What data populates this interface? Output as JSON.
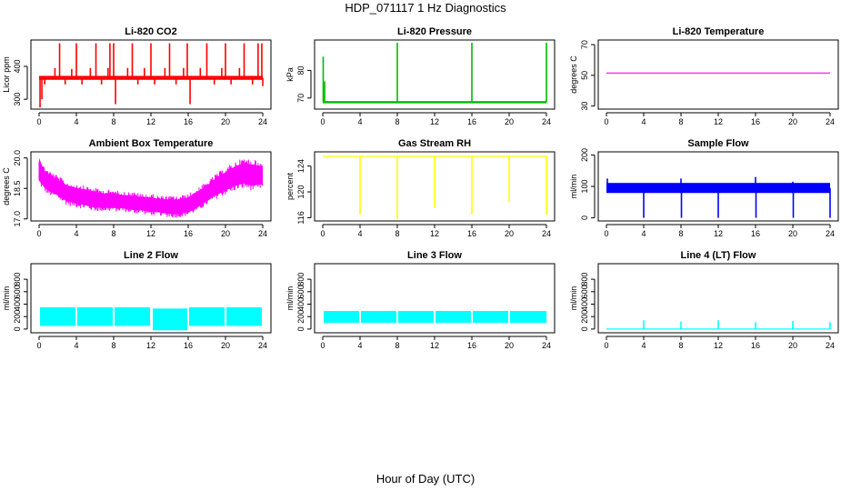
{
  "figure": {
    "title": "HDP_071117  1 Hz Diagnostics",
    "xlabel": "Hour of Day (UTC)"
  },
  "chart_data": [
    {
      "id": "co2",
      "type": "line",
      "title": "Li-820 CO2",
      "ylabel": "Licor ppm",
      "color": "#ff0000",
      "xlim": [
        0,
        24
      ],
      "ylim": [
        270,
        480
      ],
      "xticks": [
        "0",
        "4",
        "8",
        "12",
        "16",
        "20",
        "24"
      ],
      "yticks": [
        300,
        400
      ],
      "baseline": 365,
      "band": 6,
      "spikes": [
        {
          "x": 0.1,
          "y": 275
        },
        {
          "x": 0.3,
          "y": 300
        },
        {
          "x": 0.6,
          "y": 345
        },
        {
          "x": 1.7,
          "y": 395
        },
        {
          "x": 2.2,
          "y": 470
        },
        {
          "x": 2.8,
          "y": 345
        },
        {
          "x": 3.5,
          "y": 392
        },
        {
          "x": 4.0,
          "y": 470
        },
        {
          "x": 4.6,
          "y": 345
        },
        {
          "x": 5.5,
          "y": 395
        },
        {
          "x": 6.1,
          "y": 470
        },
        {
          "x": 6.7,
          "y": 345
        },
        {
          "x": 7.4,
          "y": 395
        },
        {
          "x": 7.6,
          "y": 470
        },
        {
          "x": 8.0,
          "y": 470
        },
        {
          "x": 8.2,
          "y": 285
        },
        {
          "x": 9.5,
          "y": 395
        },
        {
          "x": 10.0,
          "y": 470
        },
        {
          "x": 10.6,
          "y": 345
        },
        {
          "x": 11.3,
          "y": 395
        },
        {
          "x": 12.0,
          "y": 470
        },
        {
          "x": 12.4,
          "y": 345
        },
        {
          "x": 13.5,
          "y": 395
        },
        {
          "x": 14.0,
          "y": 470
        },
        {
          "x": 14.7,
          "y": 345
        },
        {
          "x": 15.5,
          "y": 395
        },
        {
          "x": 15.9,
          "y": 470
        },
        {
          "x": 16.2,
          "y": 285
        },
        {
          "x": 17.3,
          "y": 395
        },
        {
          "x": 18.0,
          "y": 470
        },
        {
          "x": 18.8,
          "y": 345
        },
        {
          "x": 19.6,
          "y": 395
        },
        {
          "x": 20.0,
          "y": 470
        },
        {
          "x": 20.6,
          "y": 345
        },
        {
          "x": 21.5,
          "y": 395
        },
        {
          "x": 22.0,
          "y": 470
        },
        {
          "x": 22.9,
          "y": 345
        },
        {
          "x": 23.5,
          "y": 470
        },
        {
          "x": 23.9,
          "y": 470
        },
        {
          "x": 24.0,
          "y": 340
        }
      ]
    },
    {
      "id": "pressure",
      "type": "line",
      "title": "Li-820 Pressure",
      "ylabel": "kPa",
      "color": "#00bb00",
      "xlim": [
        0,
        24
      ],
      "ylim": [
        66,
        91
      ],
      "xticks": [
        "0",
        "4",
        "8",
        "12",
        "16",
        "20",
        "24"
      ],
      "yticks": [
        70,
        80
      ],
      "baseline": 68.5,
      "band": 0.4,
      "spikes": [
        {
          "x": 0.05,
          "y": 85
        },
        {
          "x": 0.2,
          "y": 76
        },
        {
          "x": 8.0,
          "y": 90
        },
        {
          "x": 16.0,
          "y": 90
        },
        {
          "x": 24.0,
          "y": 90
        }
      ]
    },
    {
      "id": "temperature",
      "type": "line",
      "title": "Li-820 Temperature",
      "ylabel": "degrees C",
      "color": "#ff00ff",
      "xlim": [
        0,
        24
      ],
      "ylim": [
        28,
        73
      ],
      "xticks": [
        "0",
        "4",
        "8",
        "12",
        "16",
        "20",
        "24"
      ],
      "yticks": [
        30,
        50,
        70
      ],
      "baseline": 51.5,
      "band": 0,
      "spikes": []
    },
    {
      "id": "ambient",
      "type": "band",
      "title": "Ambient Box Temperature",
      "ylabel": "degrees C",
      "color": "#ff00ff",
      "xlim": [
        0,
        24
      ],
      "ylim": [
        16.9,
        20.3
      ],
      "xticks": [
        "0",
        "4",
        "8",
        "12",
        "16",
        "20",
        "24"
      ],
      "yticks": [
        17.0,
        18.5,
        20.0
      ],
      "profile": {
        "x": [
          0,
          0.5,
          1,
          2,
          3,
          4,
          5,
          6,
          7,
          8,
          9,
          10,
          11,
          12,
          13,
          14,
          15,
          16,
          17,
          18,
          19,
          20,
          21,
          22,
          23,
          24
        ],
        "low": [
          18.6,
          18.3,
          18.1,
          17.9,
          17.6,
          17.5,
          17.4,
          17.3,
          17.3,
          17.3,
          17.3,
          17.2,
          17.2,
          17.1,
          17.1,
          17.0,
          17.0,
          17.1,
          17.3,
          17.6,
          17.9,
          18.1,
          18.3,
          18.4,
          18.3,
          18.4
        ],
        "high": [
          20.0,
          19.7,
          19.5,
          19.2,
          18.9,
          18.8,
          18.7,
          18.6,
          18.5,
          18.5,
          18.4,
          18.4,
          18.3,
          18.3,
          18.2,
          18.2,
          18.2,
          18.3,
          18.6,
          18.9,
          19.3,
          19.6,
          19.9,
          20.1,
          20.0,
          19.9
        ]
      }
    },
    {
      "id": "rh",
      "type": "line",
      "title": "Gas Stream RH",
      "ylabel": "percent",
      "color": "#ffff00",
      "xlim": [
        0,
        24
      ],
      "ylim": [
        115.5,
        126.2
      ],
      "xticks": [
        "0",
        "4",
        "8",
        "12",
        "16",
        "20",
        "24"
      ],
      "yticks": [
        116,
        120,
        124
      ],
      "baseline": 125.5,
      "band": 0,
      "spikes": [
        {
          "x": 4.0,
          "y": 116.5
        },
        {
          "x": 8.0,
          "y": 115.8
        },
        {
          "x": 12.0,
          "y": 117.5
        },
        {
          "x": 16.0,
          "y": 116.5
        },
        {
          "x": 20.0,
          "y": 118.5
        },
        {
          "x": 24.0,
          "y": 116.5
        }
      ]
    },
    {
      "id": "sample",
      "type": "line",
      "title": "Sample Flow",
      "ylabel": "ml/min",
      "color": "#0000ff",
      "xlim": [
        0,
        24
      ],
      "ylim": [
        -10,
        210
      ],
      "xticks": [
        "0",
        "4",
        "8",
        "12",
        "16",
        "20",
        "24"
      ],
      "yticks": [
        0,
        100,
        200
      ],
      "baseline": 95,
      "band": 16,
      "spikes": [
        {
          "x": 0.1,
          "y": 125
        },
        {
          "x": 4.0,
          "y": 0
        },
        {
          "x": 8.0,
          "y": 125
        },
        {
          "x": 8.05,
          "y": 0
        },
        {
          "x": 12.0,
          "y": 0
        },
        {
          "x": 12.1,
          "y": 110
        },
        {
          "x": 16.0,
          "y": 130
        },
        {
          "x": 16.05,
          "y": 0
        },
        {
          "x": 20.0,
          "y": 115
        },
        {
          "x": 20.05,
          "y": 0
        },
        {
          "x": 24.0,
          "y": 0
        },
        {
          "x": 23.9,
          "y": 110
        }
      ]
    },
    {
      "id": "line2",
      "type": "blocks",
      "title": "Line 2 Flow",
      "ylabel": "ml/min",
      "color": "#00ffff",
      "xlim": [
        0,
        24
      ],
      "ylim": [
        -60,
        1050
      ],
      "xticks": [
        "0",
        "4",
        "8",
        "12",
        "16",
        "20",
        "24"
      ],
      "yticks": [
        0,
        200,
        400,
        600,
        800
      ],
      "blocks": [
        {
          "x0": 0.1,
          "x1": 3.9,
          "low": 50,
          "high": 350
        },
        {
          "x0": 4.1,
          "x1": 7.9,
          "low": 50,
          "high": 350
        },
        {
          "x0": 8.1,
          "x1": 11.9,
          "low": 50,
          "high": 350
        },
        {
          "x0": 12.2,
          "x1": 15.9,
          "low": -20,
          "high": 330
        },
        {
          "x0": 16.1,
          "x1": 19.9,
          "low": 50,
          "high": 350
        },
        {
          "x0": 20.1,
          "x1": 23.9,
          "low": 50,
          "high": 350
        }
      ]
    },
    {
      "id": "line3",
      "type": "blocks",
      "title": "Line 3 Flow",
      "ylabel": "ml/min",
      "color": "#00ffff",
      "xlim": [
        0,
        24
      ],
      "ylim": [
        -60,
        1050
      ],
      "xticks": [
        "0",
        "4",
        "8",
        "12",
        "16",
        "20",
        "24"
      ],
      "yticks": [
        0,
        200,
        400,
        600,
        800
      ],
      "blocks": [
        {
          "x0": 0.1,
          "x1": 3.9,
          "low": 100,
          "high": 290
        },
        {
          "x0": 4.1,
          "x1": 7.9,
          "low": 100,
          "high": 290
        },
        {
          "x0": 8.1,
          "x1": 11.9,
          "low": 100,
          "high": 290
        },
        {
          "x0": 12.1,
          "x1": 15.9,
          "low": 100,
          "high": 290
        },
        {
          "x0": 16.1,
          "x1": 19.9,
          "low": 100,
          "high": 290
        },
        {
          "x0": 20.1,
          "x1": 24.0,
          "low": 100,
          "high": 290
        }
      ]
    },
    {
      "id": "line4",
      "type": "line",
      "title": "Line 4 (LT) Flow",
      "ylabel": "ml/min",
      "color": "#00ffff",
      "xlim": [
        0,
        24
      ],
      "ylim": [
        -60,
        1050
      ],
      "xticks": [
        "0",
        "4",
        "8",
        "12",
        "16",
        "20",
        "24"
      ],
      "yticks": [
        0,
        200,
        400,
        600,
        800
      ],
      "baseline": 0,
      "band": 0,
      "spikes": [
        {
          "x": 4.0,
          "y": 140
        },
        {
          "x": 8.0,
          "y": 120
        },
        {
          "x": 12.0,
          "y": 140
        },
        {
          "x": 16.0,
          "y": 110
        },
        {
          "x": 20.0,
          "y": 130
        },
        {
          "x": 24.0,
          "y": 110
        }
      ]
    }
  ]
}
